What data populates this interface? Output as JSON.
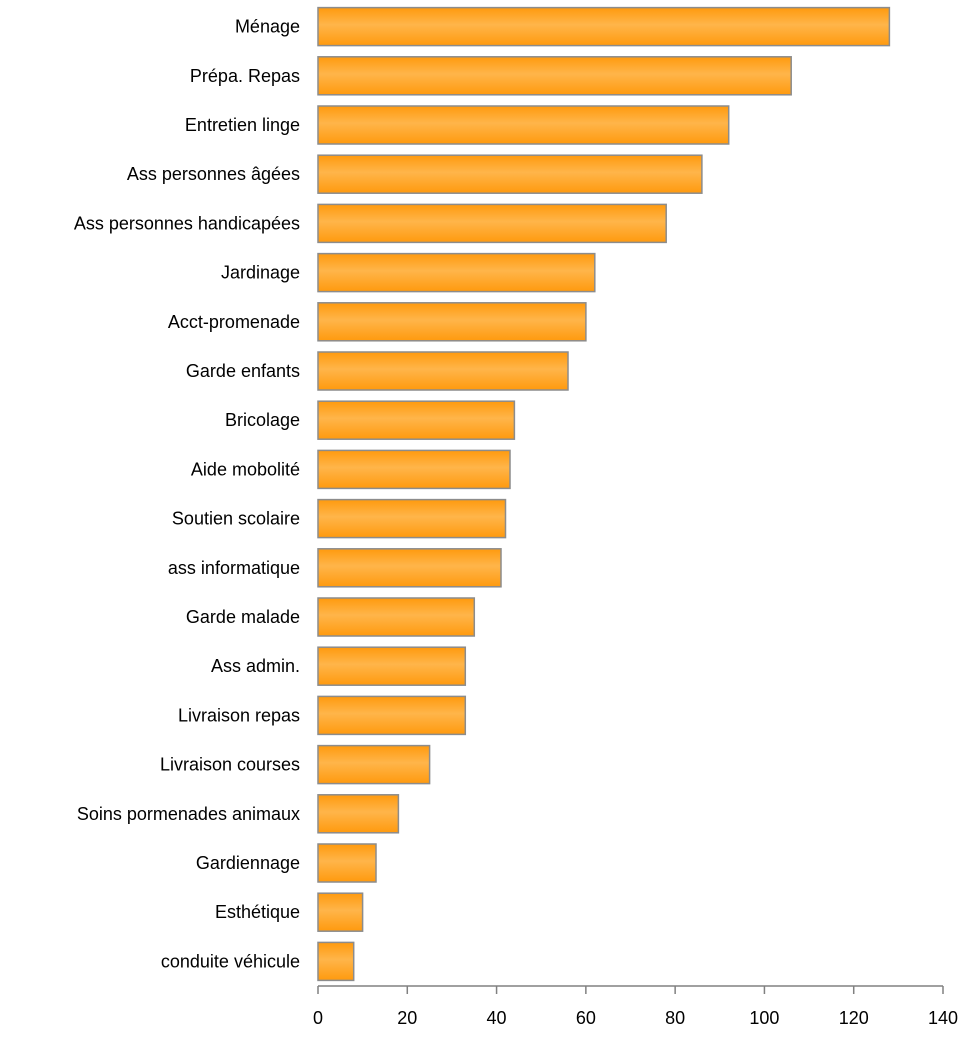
{
  "chart_data": {
    "type": "bar",
    "orientation": "horizontal",
    "categories": [
      "Ménage",
      "Prépa. Repas",
      "Entretien linge",
      "Ass personnes âgées",
      "Ass personnes handicapées",
      "Jardinage",
      "Acct-promenade",
      "Garde enfants",
      "Bricolage",
      "Aide mobolité",
      "Soutien scolaire",
      "ass informatique",
      "Garde malade",
      "Ass admin.",
      "Livraison repas",
      "Livraison courses",
      "Soins pormenades animaux",
      "Gardiennage",
      "Esthétique",
      "conduite véhicule"
    ],
    "values": [
      128,
      106,
      92,
      86,
      78,
      62,
      60,
      56,
      44,
      43,
      42,
      41,
      35,
      33,
      33,
      25,
      18,
      13,
      10,
      8
    ],
    "xlim": [
      0,
      140
    ],
    "xticks": [
      "0",
      "20",
      "40",
      "60",
      "80",
      "100",
      "120",
      "140"
    ],
    "grid": false,
    "legend": "none",
    "colors": {
      "bar_fill": "#FF9A0E",
      "bar_highlight": "#FFB54A",
      "bar_edge": "#8C8C8C",
      "axis": "#808080"
    }
  }
}
